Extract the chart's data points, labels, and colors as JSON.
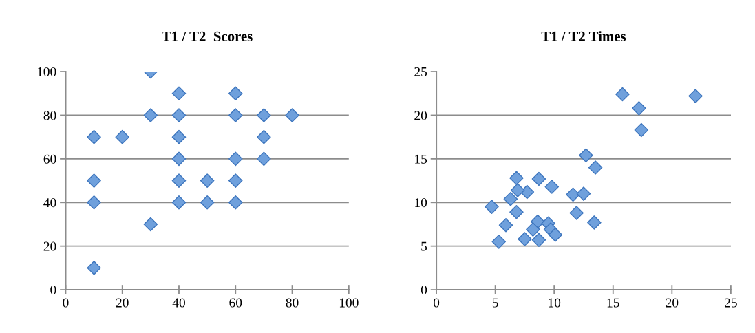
{
  "chart_data": [
    {
      "type": "scatter",
      "title": "T1 / T2  Scores",
      "marker": "diamond",
      "grid": "y",
      "x": [
        10,
        10,
        10,
        10,
        20,
        30,
        30,
        30,
        40,
        40,
        40,
        40,
        40,
        40,
        50,
        50,
        60,
        60,
        60,
        60,
        60,
        70,
        70,
        70,
        80
      ],
      "series": [
        {
          "color": "#6fa0dc",
          "values": [
            70,
            50,
            40,
            10,
            70,
            100,
            80,
            30,
            90,
            80,
            70,
            60,
            50,
            40,
            50,
            40,
            90,
            80,
            60,
            50,
            40,
            80,
            70,
            60,
            80
          ]
        }
      ],
      "xlim": [
        0,
        100
      ],
      "xticks": [
        0,
        20,
        40,
        60,
        80,
        100
      ],
      "ylim": [
        0,
        100
      ],
      "yticks": [
        0,
        20,
        40,
        60,
        80,
        100
      ]
    },
    {
      "type": "scatter",
      "title": "T1 / T2 Times",
      "marker": "diamond",
      "grid": "y",
      "x": [
        15.8,
        17.2,
        17.4,
        22.0,
        12.7,
        13.5,
        6.8,
        8.7,
        9.5,
        9.8,
        7.7,
        6.9,
        11.6,
        12.5,
        6.3,
        4.7,
        6.8,
        11.9,
        13.4,
        5.9,
        5.3,
        7.5,
        8.7,
        8.6,
        8.2,
        9.5,
        9.7,
        10.1
      ],
      "series": [
        {
          "color": "#6fa0dc",
          "values": [
            22.4,
            20.8,
            18.3,
            22.2,
            15.4,
            14.0,
            12.8,
            12.7,
            null,
            11.8,
            11.2,
            11.4,
            10.9,
            11.0,
            10.4,
            9.5,
            8.9,
            8.8,
            7.7,
            7.4,
            5.5,
            5.8,
            5.7,
            7.8,
            6.9,
            7.6,
            6.9,
            6.3
          ]
        }
      ],
      "xlim": [
        0,
        25
      ],
      "xticks": [
        0,
        5,
        10,
        15,
        20,
        25
      ],
      "ylim": [
        0,
        25
      ],
      "yticks": [
        0,
        5,
        10,
        15,
        20,
        25
      ]
    }
  ]
}
